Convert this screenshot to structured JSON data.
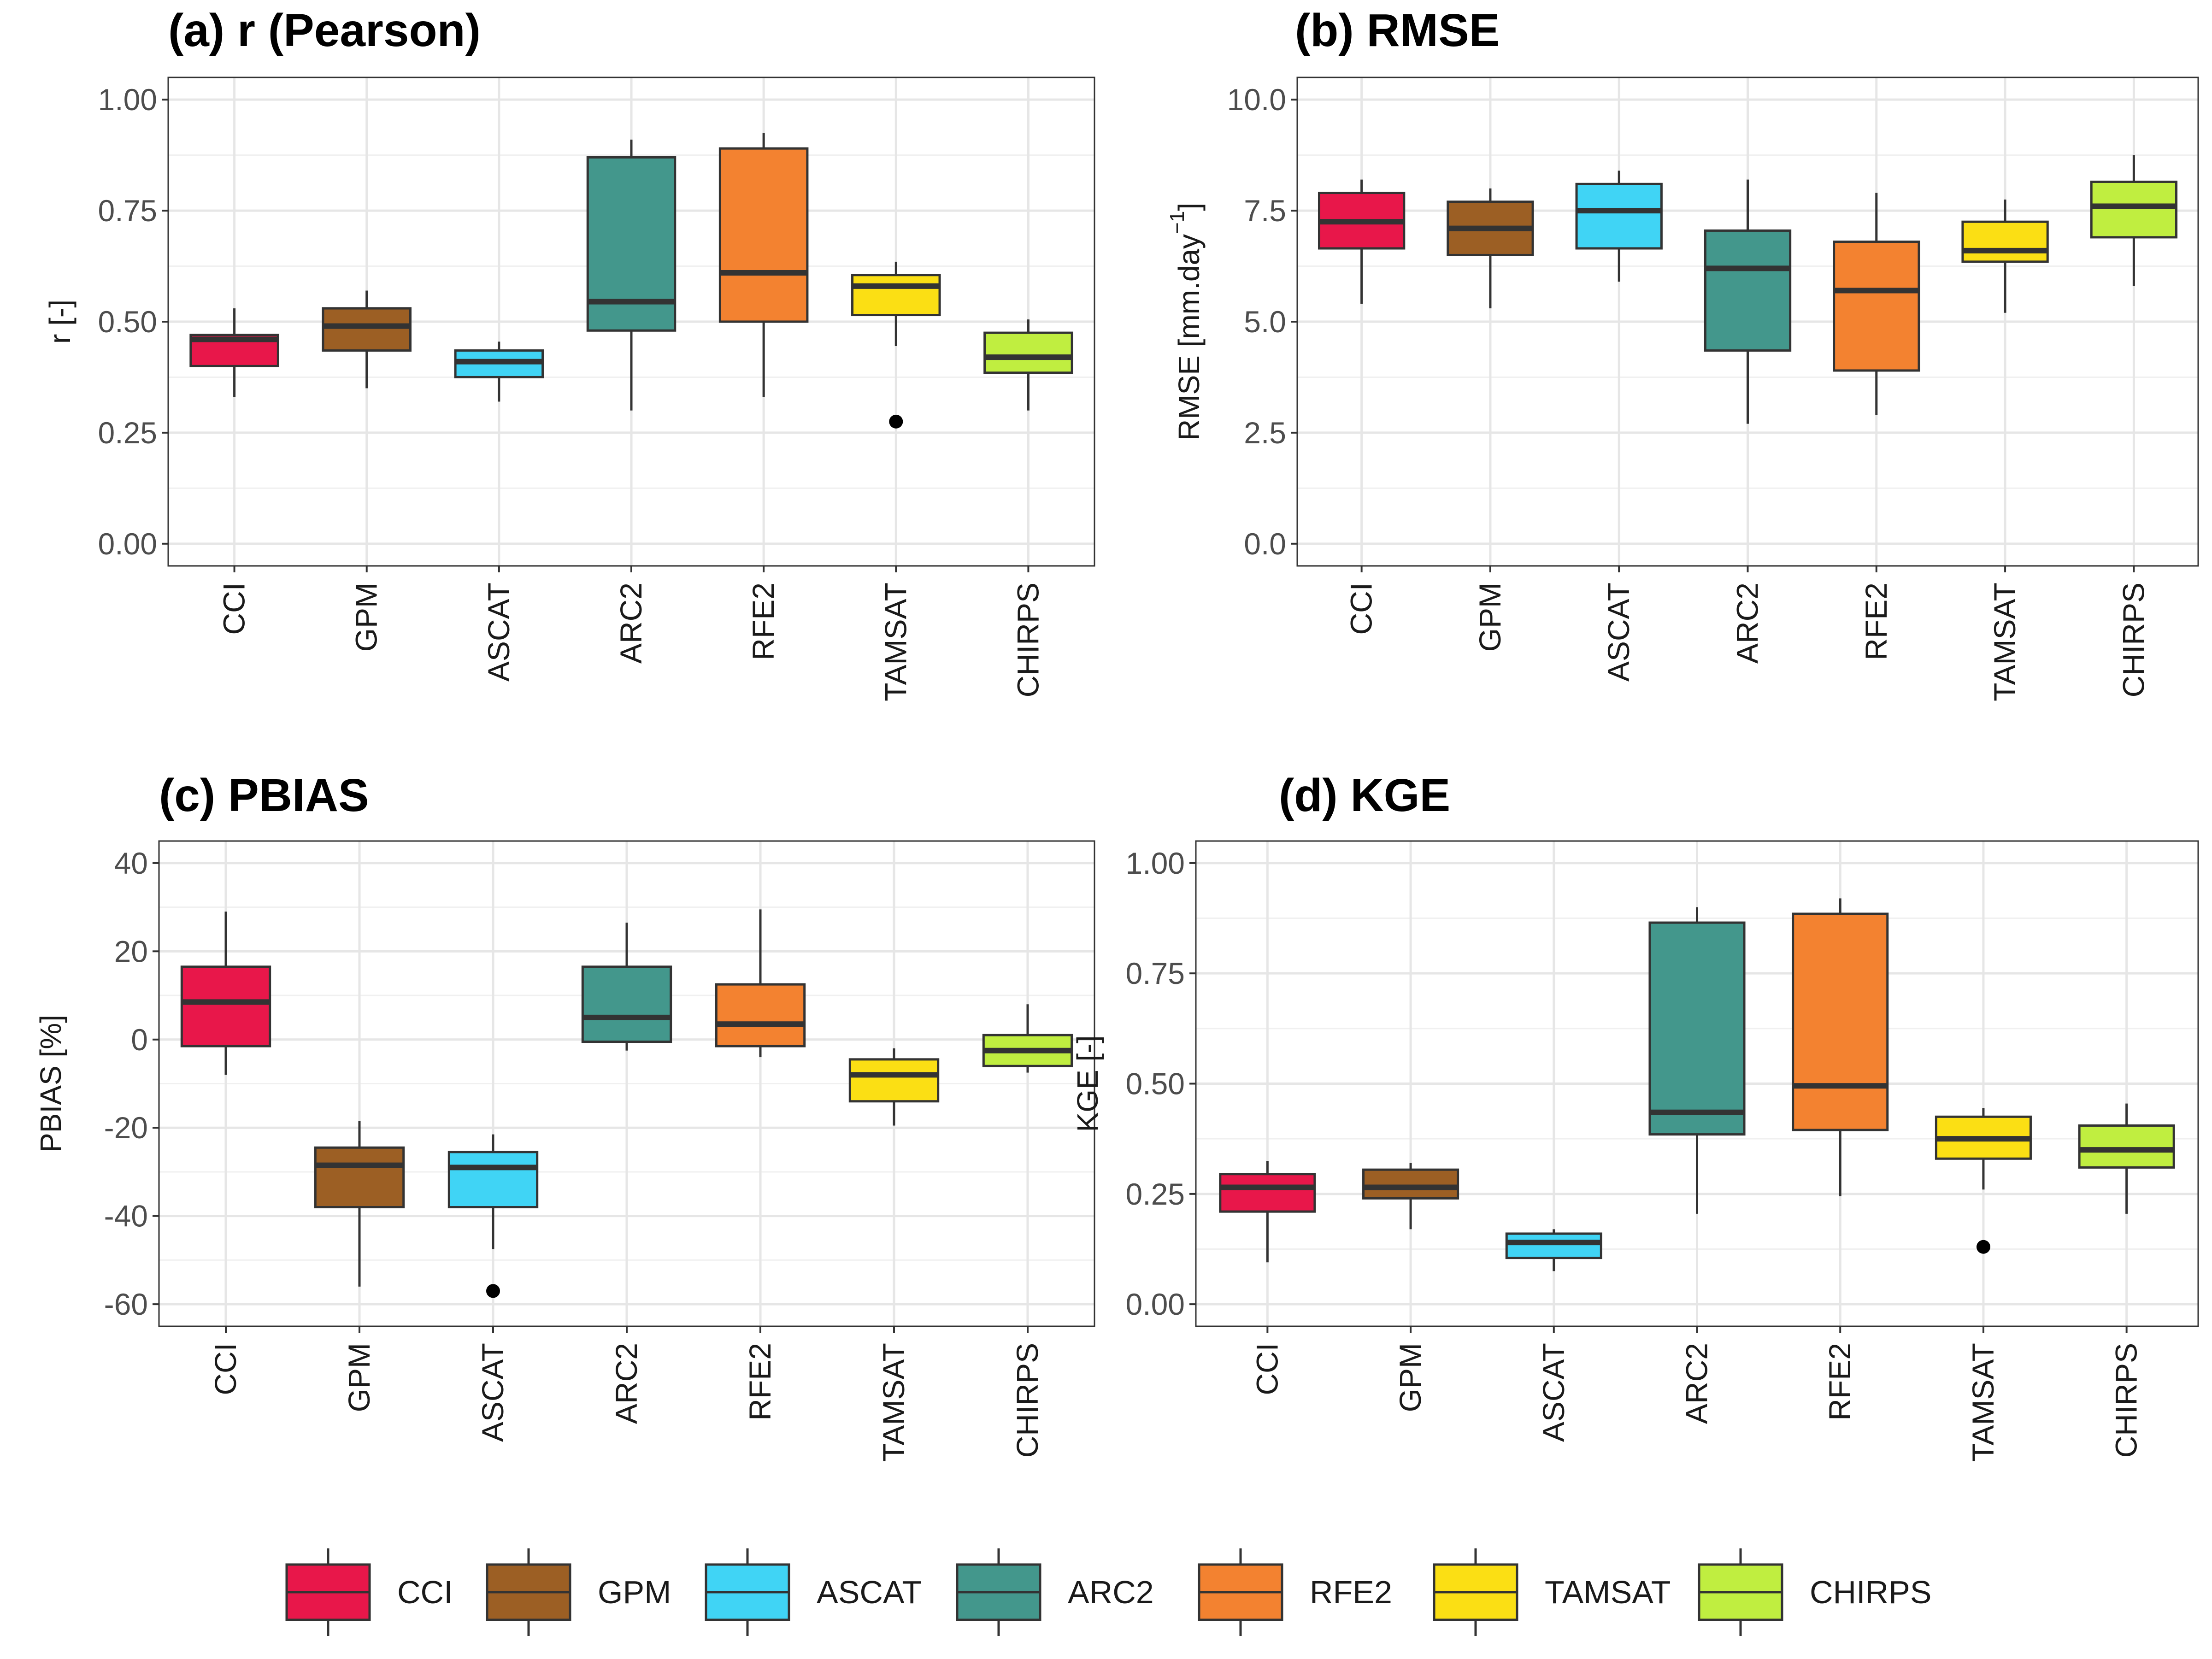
{
  "colors": {
    "CCI": "#E8174A",
    "GPM": "#9C5F24",
    "ASCAT": "#40D4F5",
    "ARC2": "#43978C",
    "RFE2": "#F38230",
    "TAMSAT": "#FBDF14",
    "CHIRPS": "#C0EE40"
  },
  "legend": [
    "CCI",
    "GPM",
    "ASCAT",
    "ARC2",
    "RFE2",
    "TAMSAT",
    "CHIRPS"
  ],
  "chart_data": [
    {
      "type": "box",
      "title": "(a) r (Pearson)",
      "ylabel": "r [-]",
      "ylim": [
        -0.05,
        1.05
      ],
      "yticks": [
        0.0,
        0.25,
        0.5,
        0.75,
        1.0
      ],
      "ytick_labels": [
        "0.00",
        "0.25",
        "0.50",
        "0.75",
        "1.00"
      ],
      "categories": [
        "CCI",
        "GPM",
        "ASCAT",
        "ARC2",
        "RFE2",
        "TAMSAT",
        "CHIRPS"
      ],
      "boxes": [
        {
          "lo": 0.33,
          "q1": 0.4,
          "med": 0.46,
          "q3": 0.47,
          "hi": 0.53,
          "outliers": []
        },
        {
          "lo": 0.35,
          "q1": 0.435,
          "med": 0.49,
          "q3": 0.53,
          "hi": 0.57,
          "outliers": []
        },
        {
          "lo": 0.32,
          "q1": 0.375,
          "med": 0.41,
          "q3": 0.435,
          "hi": 0.455,
          "outliers": []
        },
        {
          "lo": 0.3,
          "q1": 0.48,
          "med": 0.545,
          "q3": 0.87,
          "hi": 0.91,
          "outliers": []
        },
        {
          "lo": 0.33,
          "q1": 0.5,
          "med": 0.61,
          "q3": 0.89,
          "hi": 0.925,
          "outliers": []
        },
        {
          "lo": 0.445,
          "q1": 0.515,
          "med": 0.58,
          "q3": 0.605,
          "hi": 0.635,
          "outliers": [
            0.275
          ]
        },
        {
          "lo": 0.3,
          "q1": 0.385,
          "med": 0.42,
          "q3": 0.475,
          "hi": 0.505,
          "outliers": []
        }
      ]
    },
    {
      "type": "box",
      "title": "(b) RMSE",
      "ylabel": "RMSE [mm.day",
      "ylabel_sup": "−1",
      "ylabel_end": "]",
      "ylim": [
        -0.5,
        10.5
      ],
      "yticks": [
        0.0,
        2.5,
        5.0,
        7.5,
        10.0
      ],
      "ytick_labels": [
        "0.0",
        "2.5",
        "5.0",
        "7.5",
        "10.0"
      ],
      "categories": [
        "CCI",
        "GPM",
        "ASCAT",
        "ARC2",
        "RFE2",
        "TAMSAT",
        "CHIRPS"
      ],
      "boxes": [
        {
          "lo": 5.4,
          "q1": 6.65,
          "med": 7.25,
          "q3": 7.9,
          "hi": 8.2,
          "outliers": []
        },
        {
          "lo": 5.3,
          "q1": 6.5,
          "med": 7.1,
          "q3": 7.7,
          "hi": 8.0,
          "outliers": []
        },
        {
          "lo": 5.9,
          "q1": 6.65,
          "med": 7.5,
          "q3": 8.1,
          "hi": 8.4,
          "outliers": []
        },
        {
          "lo": 2.7,
          "q1": 4.35,
          "med": 6.2,
          "q3": 7.05,
          "hi": 8.2,
          "outliers": []
        },
        {
          "lo": 2.9,
          "q1": 3.9,
          "med": 5.7,
          "q3": 6.8,
          "hi": 7.9,
          "outliers": []
        },
        {
          "lo": 5.2,
          "q1": 6.35,
          "med": 6.6,
          "q3": 7.25,
          "hi": 7.75,
          "outliers": []
        },
        {
          "lo": 5.8,
          "q1": 6.9,
          "med": 7.6,
          "q3": 8.15,
          "hi": 8.75,
          "outliers": []
        }
      ]
    },
    {
      "type": "box",
      "title": "(c) PBIAS",
      "ylabel": "PBIAS [%]",
      "ylim": [
        -65,
        45
      ],
      "yticks": [
        -60,
        -40,
        -20,
        0,
        20,
        40
      ],
      "ytick_labels": [
        "-60",
        "-40",
        "-20",
        "0",
        "20",
        "40"
      ],
      "categories": [
        "CCI",
        "GPM",
        "ASCAT",
        "ARC2",
        "RFE2",
        "TAMSAT",
        "CHIRPS"
      ],
      "boxes": [
        {
          "lo": -8,
          "q1": -1.5,
          "med": 8.5,
          "q3": 16.5,
          "hi": 29,
          "outliers": []
        },
        {
          "lo": -56,
          "q1": -38,
          "med": -28.5,
          "q3": -24.5,
          "hi": -18.5,
          "outliers": []
        },
        {
          "lo": -47.5,
          "q1": -38,
          "med": -29,
          "q3": -25.5,
          "hi": -21.5,
          "outliers": [
            -57
          ]
        },
        {
          "lo": -2.5,
          "q1": -0.5,
          "med": 5,
          "q3": 16.5,
          "hi": 26.5,
          "outliers": []
        },
        {
          "lo": -4,
          "q1": -1.5,
          "med": 3.5,
          "q3": 12.5,
          "hi": 29.5,
          "outliers": []
        },
        {
          "lo": -19.5,
          "q1": -14,
          "med": -8,
          "q3": -4.5,
          "hi": -2,
          "outliers": []
        },
        {
          "lo": -7.5,
          "q1": -6,
          "med": -2.5,
          "q3": 1,
          "hi": 8,
          "outliers": []
        }
      ]
    },
    {
      "type": "box",
      "title": "(d) KGE",
      "ylabel": "KGE [-]",
      "ylim": [
        -0.05,
        1.05
      ],
      "yticks": [
        0.0,
        0.25,
        0.5,
        0.75,
        1.0
      ],
      "ytick_labels": [
        "0.00",
        "0.25",
        "0.50",
        "0.75",
        "1.00"
      ],
      "categories": [
        "CCI",
        "GPM",
        "ASCAT",
        "ARC2",
        "RFE2",
        "TAMSAT",
        "CHIRPS"
      ],
      "boxes": [
        {
          "lo": 0.095,
          "q1": 0.21,
          "med": 0.265,
          "q3": 0.295,
          "hi": 0.325,
          "outliers": []
        },
        {
          "lo": 0.17,
          "q1": 0.24,
          "med": 0.265,
          "q3": 0.305,
          "hi": 0.32,
          "outliers": []
        },
        {
          "lo": 0.075,
          "q1": 0.105,
          "med": 0.14,
          "q3": 0.16,
          "hi": 0.17,
          "outliers": []
        },
        {
          "lo": 0.205,
          "q1": 0.385,
          "med": 0.435,
          "q3": 0.865,
          "hi": 0.9,
          "outliers": []
        },
        {
          "lo": 0.245,
          "q1": 0.395,
          "med": 0.495,
          "q3": 0.885,
          "hi": 0.92,
          "outliers": []
        },
        {
          "lo": 0.26,
          "q1": 0.33,
          "med": 0.375,
          "q3": 0.425,
          "hi": 0.445,
          "outliers": [
            0.13
          ]
        },
        {
          "lo": 0.205,
          "q1": 0.31,
          "med": 0.35,
          "q3": 0.405,
          "hi": 0.455,
          "outliers": []
        }
      ]
    }
  ]
}
